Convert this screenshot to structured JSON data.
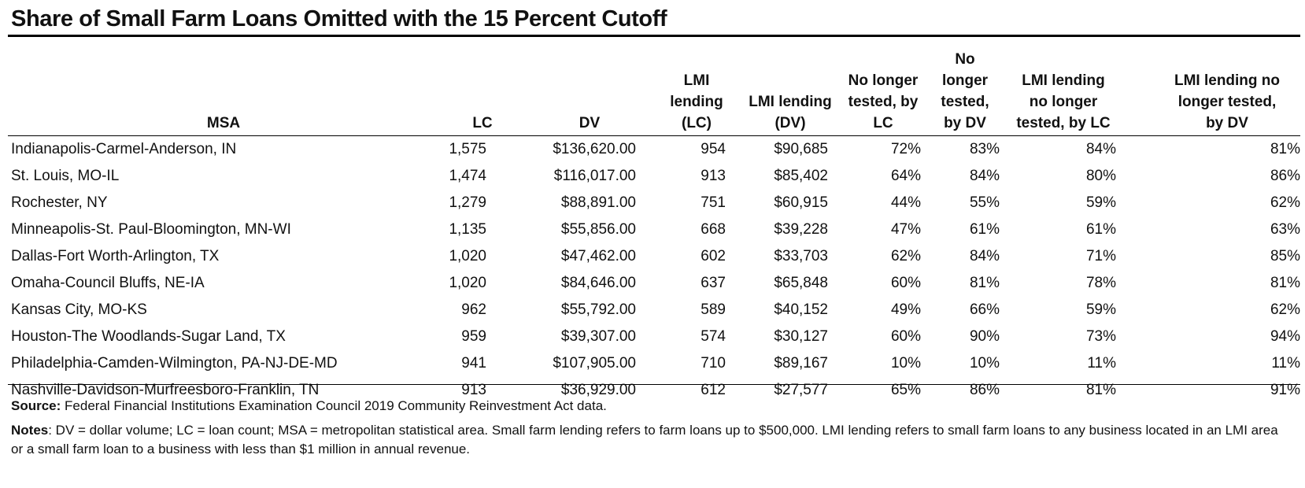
{
  "chart_data": {
    "type": "table",
    "title": "Share of Small Farm Loans Omitted with the 15 Percent Cutoff",
    "columns": [
      "MSA",
      "LC",
      "DV",
      "LMI lending (LC)",
      "LMI lending (DV)",
      "No longer tested, by LC",
      "No longer tested, by DV",
      "LMI lending no longer tested, by LC",
      "LMI lending no longer tested, by DV"
    ],
    "rows": [
      [
        "Indianapolis-Carmel-Anderson, IN",
        "1,575",
        "$136,620.00",
        "954",
        "$90,685",
        "72%",
        "83%",
        "84%",
        "81%"
      ],
      [
        "St. Louis, MO-IL",
        "1,474",
        "$116,017.00",
        "913",
        "$85,402",
        "64%",
        "84%",
        "80%",
        "86%"
      ],
      [
        "Rochester, NY",
        "1,279",
        "$88,891.00",
        "751",
        "$60,915",
        "44%",
        "55%",
        "59%",
        "62%"
      ],
      [
        "Minneapolis-St. Paul-Bloomington, MN-WI",
        "1,135",
        "$55,856.00",
        "668",
        "$39,228",
        "47%",
        "61%",
        "61%",
        "63%"
      ],
      [
        "Dallas-Fort Worth-Arlington, TX",
        "1,020",
        "$47,462.00",
        "602",
        "$33,703",
        "62%",
        "84%",
        "71%",
        "85%"
      ],
      [
        "Omaha-Council Bluffs, NE-IA",
        "1,020",
        "$84,646.00",
        "637",
        "$65,848",
        "60%",
        "81%",
        "78%",
        "81%"
      ],
      [
        "Kansas City, MO-KS",
        "962",
        "$55,792.00",
        "589",
        "$40,152",
        "49%",
        "66%",
        "59%",
        "62%"
      ],
      [
        "Houston-The Woodlands-Sugar Land, TX",
        "959",
        "$39,307.00",
        "574",
        "$30,127",
        "60%",
        "90%",
        "73%",
        "94%"
      ],
      [
        "Philadelphia-Camden-Wilmington, PA-NJ-DE-MD",
        "941",
        "$107,905.00",
        "710",
        "$89,167",
        "10%",
        "10%",
        "11%",
        "11%"
      ],
      [
        "Nashville-Davidson-Murfreesboro-Franklin, TN",
        "913",
        "$36,929.00",
        "612",
        "$27,577",
        "65%",
        "86%",
        "81%",
        "91%"
      ]
    ],
    "source_label": "Source:",
    "source": "Federal Financial Institutions Examination Council 2019 Community Reinvestment Act data.",
    "notes_label": "Notes",
    "notes": ": DV = dollar volume; LC = loan count; MSA = metropolitan statistical area. Small farm lending refers to farm loans up to $500,000. LMI lending refers to small farm loans to any business located in an LMI area or a small farm loan to a business with less than $1 million in annual revenue."
  }
}
